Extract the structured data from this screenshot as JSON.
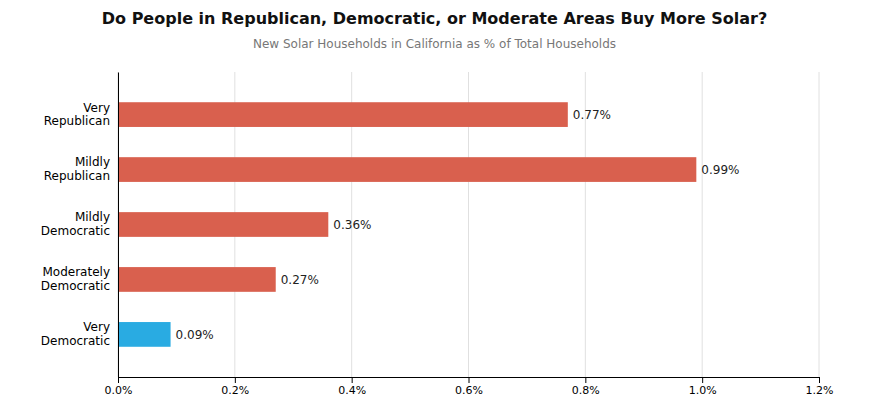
{
  "chart_data": {
    "type": "bar",
    "orientation": "horizontal",
    "title": "Do People in Republican, Democratic, or Moderate Areas Buy More Solar?",
    "subtitle": "New Solar Households in California as % of Total Households",
    "categories": [
      "Very\nRepublican",
      "Mildly\nRepublican",
      "Mildly\nDemocratic",
      "Moderately\nDemocratic",
      "Very\nDemocratic"
    ],
    "values": [
      0.77,
      0.99,
      0.36,
      0.27,
      0.09
    ],
    "value_labels": [
      "0.77%",
      "0.99%",
      "0.36%",
      "0.27%",
      "0.09%"
    ],
    "colors": [
      "#d9604e",
      "#d9604e",
      "#d9604e",
      "#d9604e",
      "#29abe2"
    ],
    "data_labels": true,
    "xlim": [
      0,
      1.2
    ],
    "xticks": [
      {
        "value": 0.0,
        "label": "0.0%"
      },
      {
        "value": 0.2,
        "label": "0.2%"
      },
      {
        "value": 0.4,
        "label": "0.4%"
      },
      {
        "value": 0.6,
        "label": "0.6%"
      },
      {
        "value": 0.8,
        "label": "0.8%"
      },
      {
        "value": 1.0,
        "label": "1.0%"
      },
      {
        "value": 1.2,
        "label": "1.2%"
      }
    ],
    "grid": true
  }
}
